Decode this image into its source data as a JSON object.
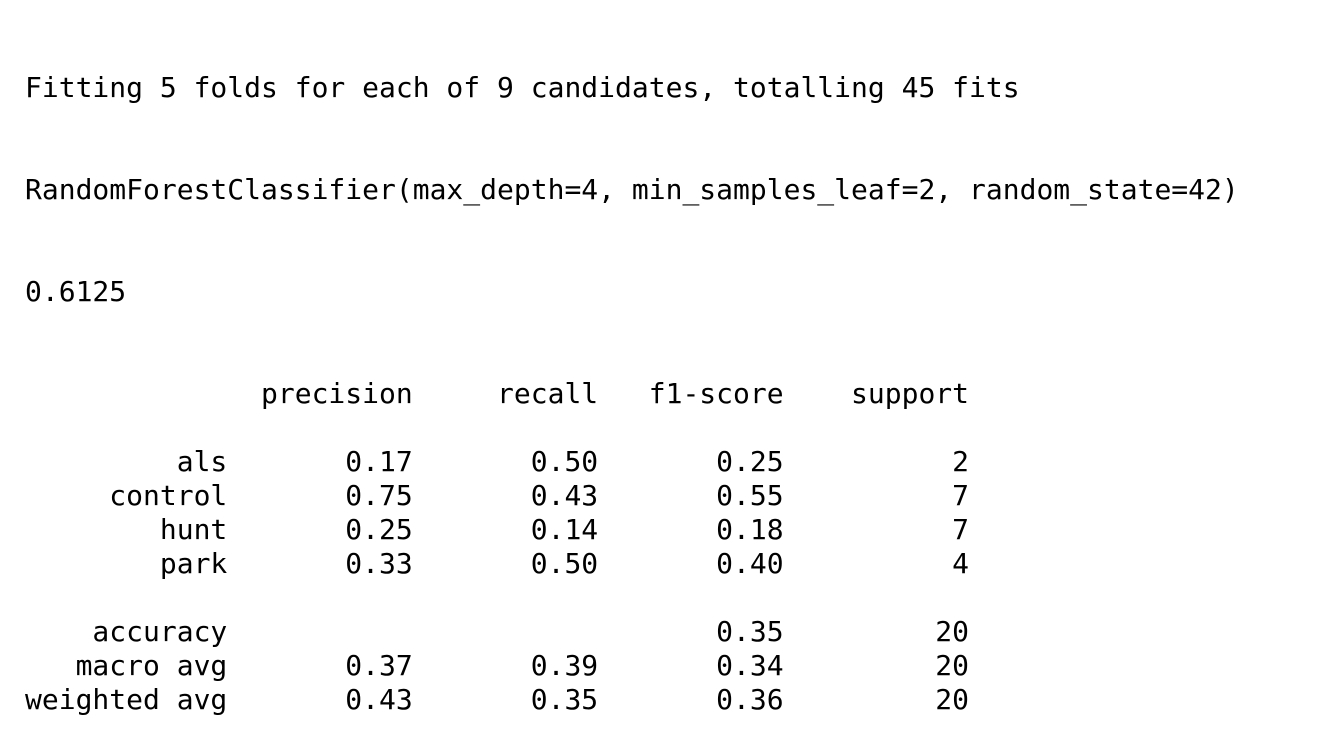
{
  "output": {
    "fit_message": "Fitting 5 folds for each of 9 candidates, totalling 45 fits",
    "best_estimator": "RandomForestClassifier(max_depth=4, min_samples_leaf=2, random_state=42)",
    "best_score": "0.6125",
    "report": {
      "headers": [
        "precision",
        "recall",
        "f1-score",
        "support"
      ],
      "rows": [
        {
          "label": "als",
          "precision": "0.17",
          "recall": "0.50",
          "f1": "0.25",
          "support": "2"
        },
        {
          "label": "control",
          "precision": "0.75",
          "recall": "0.43",
          "f1": "0.55",
          "support": "7"
        },
        {
          "label": "hunt",
          "precision": "0.25",
          "recall": "0.14",
          "f1": "0.18",
          "support": "7"
        },
        {
          "label": "park",
          "precision": "0.33",
          "recall": "0.50",
          "f1": "0.40",
          "support": "4"
        }
      ],
      "summary": [
        {
          "label": "accuracy",
          "precision": "",
          "recall": "",
          "f1": "0.35",
          "support": "20"
        },
        {
          "label": "macro avg",
          "precision": "0.37",
          "recall": "0.39",
          "f1": "0.34",
          "support": "20"
        },
        {
          "label": "weighted avg",
          "precision": "0.43",
          "recall": "0.35",
          "f1": "0.36",
          "support": "20"
        }
      ]
    }
  }
}
